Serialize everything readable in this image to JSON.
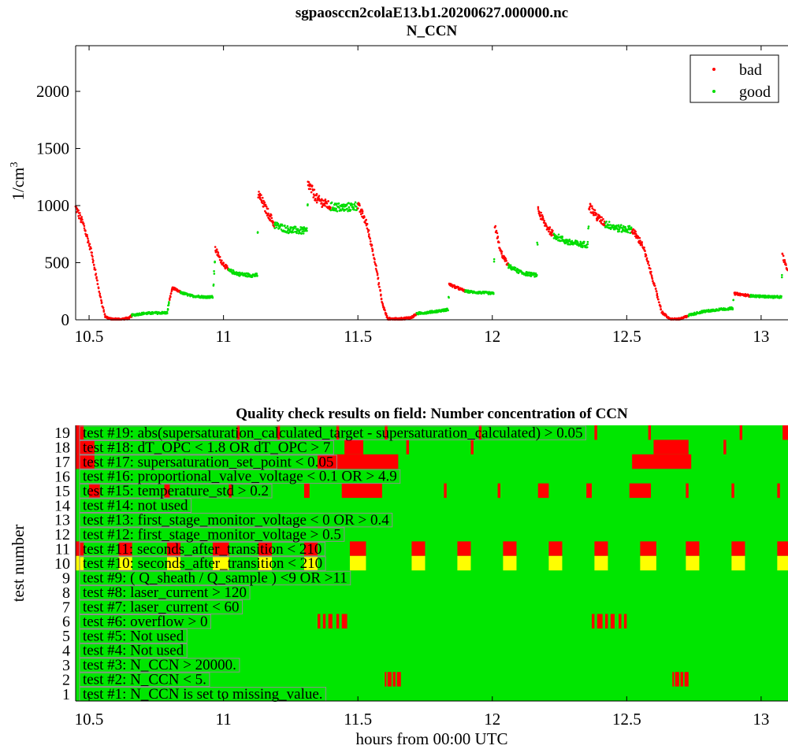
{
  "header": {
    "filename": "sgpaosccn2colaE13.b1.20200627.000000.nc",
    "variable": "N_CCN"
  },
  "chart_data": [
    {
      "type": "scatter",
      "title": "sgpaosccn2colaE13.b1.20200627.000000.nc",
      "subtitle": "N_CCN",
      "ylabel_base": "1/cm",
      "ylabel_exp": "3",
      "xlim": [
        10.45,
        13.1
      ],
      "ylim": [
        0,
        2400
      ],
      "x_ticks": [
        "10.5",
        "11",
        "11.5",
        "12",
        "12.5",
        "13"
      ],
      "y_ticks": [
        "0",
        "500",
        "1000",
        "1500",
        "2000"
      ],
      "legend_position": "top-right",
      "colors": {
        "bad": "#ff0000",
        "good": "#00dd00"
      },
      "series": [
        {
          "name": "bad"
        },
        {
          "name": "good"
        }
      ],
      "profile": [
        [
          10.45,
          980,
          "bad"
        ],
        [
          10.48,
          830,
          "bad"
        ],
        [
          10.51,
          580,
          "bad"
        ],
        [
          10.54,
          220,
          "bad"
        ],
        [
          10.56,
          30,
          "bad"
        ],
        [
          10.58,
          5,
          "bad"
        ],
        [
          10.62,
          5,
          "bad"
        ],
        [
          10.65,
          15,
          "bad"
        ],
        [
          10.66,
          40,
          "good"
        ],
        [
          10.7,
          55,
          "good"
        ],
        [
          10.75,
          60,
          "good"
        ],
        [
          10.79,
          62,
          "good"
        ],
        [
          10.8,
          180,
          "bad"
        ],
        [
          10.81,
          280,
          "bad"
        ],
        [
          10.84,
          240,
          "good"
        ],
        [
          10.88,
          210,
          "good"
        ],
        [
          10.93,
          200,
          "good"
        ],
        [
          10.96,
          200,
          "good"
        ],
        [
          10.97,
          620,
          "bad"
        ],
        [
          10.99,
          520,
          "bad"
        ],
        [
          11.02,
          430,
          "good"
        ],
        [
          11.06,
          400,
          "good"
        ],
        [
          11.1,
          390,
          "good"
        ],
        [
          11.125,
          390,
          "good"
        ],
        [
          11.13,
          1100,
          "bad"
        ],
        [
          11.16,
          960,
          "bad"
        ],
        [
          11.19,
          830,
          "good"
        ],
        [
          11.24,
          790,
          "good"
        ],
        [
          11.29,
          780,
          "good"
        ],
        [
          11.31,
          780,
          "good"
        ],
        [
          11.315,
          1190,
          "bad"
        ],
        [
          11.35,
          1050,
          "bad"
        ],
        [
          11.4,
          990,
          "good"
        ],
        [
          11.45,
          980,
          "good"
        ],
        [
          11.5,
          1000,
          "bad"
        ],
        [
          11.53,
          860,
          "bad"
        ],
        [
          11.56,
          560,
          "bad"
        ],
        [
          11.59,
          150,
          "bad"
        ],
        [
          11.61,
          10,
          "bad"
        ],
        [
          11.65,
          5,
          "bad"
        ],
        [
          11.7,
          20,
          "bad"
        ],
        [
          11.72,
          55,
          "good"
        ],
        [
          11.76,
          65,
          "good"
        ],
        [
          11.81,
          80,
          "good"
        ],
        [
          11.835,
          90,
          "good"
        ],
        [
          11.84,
          310,
          "bad"
        ],
        [
          11.87,
          280,
          "bad"
        ],
        [
          11.9,
          250,
          "good"
        ],
        [
          11.94,
          240,
          "good"
        ],
        [
          11.98,
          235,
          "good"
        ],
        [
          12.005,
          230,
          "good"
        ],
        [
          12.01,
          820,
          "bad"
        ],
        [
          12.03,
          600,
          "bad"
        ],
        [
          12.06,
          470,
          "good"
        ],
        [
          12.11,
          410,
          "good"
        ],
        [
          12.165,
          390,
          "good"
        ],
        [
          12.17,
          960,
          "bad"
        ],
        [
          12.2,
          820,
          "bad"
        ],
        [
          12.23,
          740,
          "good"
        ],
        [
          12.28,
          680,
          "good"
        ],
        [
          12.33,
          660,
          "good"
        ],
        [
          12.355,
          660,
          "good"
        ],
        [
          12.36,
          1000,
          "bad"
        ],
        [
          12.39,
          900,
          "bad"
        ],
        [
          12.42,
          840,
          "good"
        ],
        [
          12.47,
          800,
          "good"
        ],
        [
          12.52,
          790,
          "bad"
        ],
        [
          12.56,
          650,
          "bad"
        ],
        [
          12.6,
          330,
          "bad"
        ],
        [
          12.63,
          70,
          "bad"
        ],
        [
          12.66,
          5,
          "bad"
        ],
        [
          12.7,
          5,
          "bad"
        ],
        [
          12.73,
          40,
          "good"
        ],
        [
          12.78,
          70,
          "good"
        ],
        [
          12.84,
          90,
          "good"
        ],
        [
          12.895,
          100,
          "good"
        ],
        [
          12.9,
          230,
          "bad"
        ],
        [
          12.93,
          220,
          "bad"
        ],
        [
          12.96,
          210,
          "good"
        ],
        [
          13.0,
          205,
          "good"
        ],
        [
          13.05,
          200,
          "good"
        ],
        [
          13.075,
          200,
          "good"
        ],
        [
          13.08,
          560,
          "bad"
        ],
        [
          13.1,
          420,
          "bad"
        ]
      ]
    },
    {
      "type": "heatmap",
      "title": "Quality check results on field: Number concentration of CCN",
      "xlabel": "hours from 00:00 UTC",
      "ylabel": "test number",
      "xlim": [
        10.45,
        13.1
      ],
      "x_ticks": [
        "10.5",
        "11",
        "11.5",
        "12",
        "12.5",
        "13"
      ],
      "y_ticks": [
        "1",
        "2",
        "3",
        "4",
        "5",
        "6",
        "7",
        "8",
        "9",
        "10",
        "11",
        "12",
        "13",
        "14",
        "15",
        "16",
        "17",
        "18",
        "19"
      ],
      "colors": {
        "pass": "#00e600",
        "fail": "#ff0000",
        "warn": "#ffff00"
      },
      "tests": [
        {
          "n": 1,
          "label": "test #1: N_CCN is set to missing_value."
        },
        {
          "n": 2,
          "label": "test #2: N_CCN < 5."
        },
        {
          "n": 3,
          "label": "test #3: N_CCN > 20000."
        },
        {
          "n": 4,
          "label": "test #4: Not used"
        },
        {
          "n": 5,
          "label": "test #5: Not used"
        },
        {
          "n": 6,
          "label": "test #6: overflow > 0"
        },
        {
          "n": 7,
          "label": "test #7: laser_current < 60"
        },
        {
          "n": 8,
          "label": "test #8: laser_current > 120"
        },
        {
          "n": 9,
          "label": "test #9: ( Q_sheath / Q_sample ) <9 OR >11"
        },
        {
          "n": 10,
          "label": "test #10: seconds_after_transition < 210"
        },
        {
          "n": 11,
          "label": "test #11: seconds_after_transition < 210"
        },
        {
          "n": 12,
          "label": "test #12: first_stage_monitor_voltage > 0.5"
        },
        {
          "n": 13,
          "label": "test #13: first_stage_monitor_voltage < 0 OR > 0.4"
        },
        {
          "n": 14,
          "label": "test #14: not used"
        },
        {
          "n": 15,
          "label": "test #15: temperature_std > 0.2"
        },
        {
          "n": 16,
          "label": "test #16: proportional_valve_voltage < 0.1 OR  > 4.9"
        },
        {
          "n": 17,
          "label": "test #17: supersaturation_set_point < 0.05"
        },
        {
          "n": 18,
          "label": "test #18: dT_OPC < 1.8 OR dT_OPC > 7"
        },
        {
          "n": 19,
          "label": "test #19: abs(supersaturation_calculated_target - supersaturation_calculated) > 0.05"
        }
      ],
      "flags": [
        {
          "test": 19,
          "status": "fail",
          "spans": [
            [
              10.45,
              10.48
            ],
            [
              11.05,
              11.06
            ],
            [
              11.2,
              11.21
            ],
            [
              11.42,
              11.43
            ],
            [
              11.6,
              11.61
            ],
            [
              11.95,
              11.96
            ],
            [
              12.38,
              12.39
            ],
            [
              12.58,
              12.59
            ],
            [
              12.92,
              12.93
            ],
            [
              13.08,
              13.1
            ]
          ]
        },
        {
          "test": 18,
          "status": "fail",
          "spans": [
            [
              10.45,
              10.52
            ],
            [
              11.45,
              11.52
            ],
            [
              11.68,
              11.69
            ],
            [
              11.92,
              11.93
            ],
            [
              12.6,
              12.73
            ],
            [
              12.86,
              12.87
            ]
          ]
        },
        {
          "test": 17,
          "status": "fail",
          "spans": [
            [
              10.45,
              10.52
            ],
            [
              11.35,
              11.65
            ],
            [
              12.52,
              12.74
            ]
          ]
        },
        {
          "test": 15,
          "status": "fail",
          "spans": [
            [
              10.5,
              10.54
            ],
            [
              10.78,
              10.8
            ],
            [
              11.02,
              11.03
            ],
            [
              11.3,
              11.32
            ],
            [
              11.44,
              11.59
            ],
            [
              11.82,
              11.83
            ],
            [
              12.02,
              12.03
            ],
            [
              12.17,
              12.21
            ],
            [
              12.35,
              12.37
            ],
            [
              12.51,
              12.59
            ],
            [
              12.72,
              12.73
            ],
            [
              12.89,
              12.9
            ],
            [
              13.06,
              13.07
            ]
          ]
        },
        {
          "test": 11,
          "status": "fail",
          "spans": [
            [
              10.45,
              10.48
            ],
            [
              10.61,
              10.66
            ],
            [
              10.79,
              10.84
            ],
            [
              10.96,
              11.02
            ],
            [
              11.13,
              11.18
            ],
            [
              11.3,
              11.35
            ],
            [
              11.47,
              11.53
            ],
            [
              11.7,
              11.75
            ],
            [
              11.87,
              11.92
            ],
            [
              12.04,
              12.09
            ],
            [
              12.21,
              12.26
            ],
            [
              12.38,
              12.43
            ],
            [
              12.55,
              12.61
            ],
            [
              12.72,
              12.77
            ],
            [
              12.89,
              12.94
            ],
            [
              13.06,
              13.1
            ]
          ]
        },
        {
          "test": 10,
          "status": "warn",
          "spans": [
            [
              10.45,
              10.48
            ],
            [
              10.61,
              10.66
            ],
            [
              10.79,
              10.84
            ],
            [
              10.96,
              11.02
            ],
            [
              11.13,
              11.18
            ],
            [
              11.3,
              11.35
            ],
            [
              11.47,
              11.53
            ],
            [
              11.7,
              11.75
            ],
            [
              11.87,
              11.92
            ],
            [
              12.04,
              12.09
            ],
            [
              12.21,
              12.26
            ],
            [
              12.38,
              12.43
            ],
            [
              12.55,
              12.61
            ],
            [
              12.72,
              12.77
            ],
            [
              12.89,
              12.94
            ],
            [
              13.06,
              13.1
            ]
          ]
        },
        {
          "test": 6,
          "status": "fail",
          "spans": [
            [
              11.35,
              11.36
            ],
            [
              11.37,
              11.38
            ],
            [
              11.39,
              11.405
            ],
            [
              11.42,
              11.43
            ],
            [
              11.44,
              11.46
            ],
            [
              12.37,
              12.38
            ],
            [
              12.39,
              12.41
            ],
            [
              12.42,
              12.43
            ],
            [
              12.44,
              12.455
            ],
            [
              12.47,
              12.48
            ],
            [
              12.49,
              12.5
            ]
          ]
        },
        {
          "test": 2,
          "status": "fail",
          "spans": [
            [
              11.6,
              11.605
            ],
            [
              11.61,
              11.625
            ],
            [
              11.63,
              11.64
            ],
            [
              11.645,
              11.66
            ],
            [
              12.67,
              12.675
            ],
            [
              12.68,
              12.695
            ],
            [
              12.7,
              12.71
            ],
            [
              12.715,
              12.73
            ]
          ]
        }
      ]
    }
  ]
}
